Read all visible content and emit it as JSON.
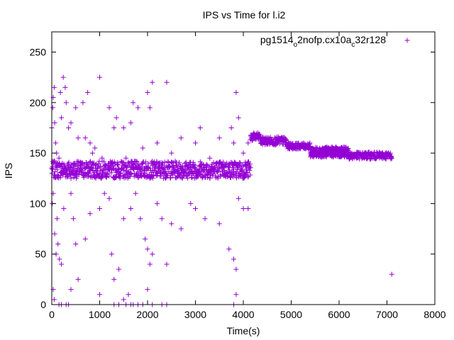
{
  "chart_data": {
    "type": "scatter",
    "title": "IPS vs Time for l.i2",
    "xlabel": "Time(s)",
    "ylabel": "IPS",
    "xlim": [
      0,
      8000
    ],
    "ylim": [
      0,
      270
    ],
    "xticks": [
      0,
      1000,
      2000,
      3000,
      4000,
      5000,
      6000,
      7000,
      8000
    ],
    "yticks": [
      0,
      50,
      100,
      150,
      200,
      250
    ],
    "grid": false,
    "legend_position": "top-right",
    "series": [
      {
        "name": "pg1514_o2nofp.cx10a_c32r128",
        "name_parts": {
          "base1": "pg1514",
          "sub1": "o",
          "base2": "2nofp.cx10a",
          "sub2": "c",
          "base3": "32r128"
        },
        "color": "#9400d3",
        "marker": "+",
        "bands": [
          {
            "x": [
              0,
              4150
            ],
            "y": [
              125,
              142
            ]
          },
          {
            "x": [
              4150,
              4350
            ],
            "y": [
              162,
              170
            ]
          },
          {
            "x": [
              4350,
              4900
            ],
            "y": [
              158,
              166
            ]
          },
          {
            "x": [
              4900,
              5400
            ],
            "y": [
              154,
              160
            ]
          },
          {
            "x": [
              5400,
              6200
            ],
            "y": [
              150,
              156
            ]
          },
          {
            "x": [
              5400,
              6200
            ],
            "y": [
              146,
              151
            ]
          },
          {
            "x": [
              6200,
              7100
            ],
            "y": [
              144,
              151
            ]
          }
        ],
        "points": [
          [
            0,
            175
          ],
          [
            20,
            195
          ],
          [
            30,
            205
          ],
          [
            50,
            215
          ],
          [
            60,
            180
          ],
          [
            80,
            160
          ],
          [
            100,
            150
          ],
          [
            150,
            145
          ],
          [
            180,
            210
          ],
          [
            200,
            185
          ],
          [
            240,
            225
          ],
          [
            280,
            215
          ],
          [
            300,
            200
          ],
          [
            350,
            175
          ],
          [
            400,
            180
          ],
          [
            500,
            195
          ],
          [
            550,
            165
          ],
          [
            650,
            200
          ],
          [
            700,
            165
          ],
          [
            750,
            210
          ],
          [
            800,
            160
          ],
          [
            850,
            150
          ],
          [
            900,
            155
          ],
          [
            1000,
            225
          ],
          [
            1050,
            145
          ],
          [
            1200,
            195
          ],
          [
            1300,
            175
          ],
          [
            1350,
            185
          ],
          [
            1500,
            175
          ],
          [
            1550,
            145
          ],
          [
            1650,
            180
          ],
          [
            1700,
            200
          ],
          [
            1800,
            195
          ],
          [
            1900,
            155
          ],
          [
            2000,
            210
          ],
          [
            2050,
            195
          ],
          [
            2100,
            220
          ],
          [
            2200,
            160
          ],
          [
            2400,
            220
          ],
          [
            2500,
            150
          ],
          [
            2700,
            165
          ],
          [
            3000,
            160
          ],
          [
            3100,
            175
          ],
          [
            3300,
            145
          ],
          [
            3500,
            165
          ],
          [
            3750,
            175
          ],
          [
            3800,
            160
          ],
          [
            3850,
            210
          ],
          [
            3900,
            185
          ],
          [
            4000,
            150
          ],
          [
            4100,
            160
          ],
          [
            10,
            100
          ],
          [
            30,
            110
          ],
          [
            60,
            70
          ],
          [
            90,
            50
          ],
          [
            110,
            85
          ],
          [
            130,
            60
          ],
          [
            160,
            45
          ],
          [
            200,
            40
          ],
          [
            250,
            95
          ],
          [
            400,
            110
          ],
          [
            450,
            85
          ],
          [
            500,
            60
          ],
          [
            700,
            65
          ],
          [
            800,
            90
          ],
          [
            1000,
            95
          ],
          [
            1100,
            110
          ],
          [
            1200,
            105
          ],
          [
            1250,
            50
          ],
          [
            1300,
            25
          ],
          [
            1400,
            35
          ],
          [
            1500,
            85
          ],
          [
            1650,
            95
          ],
          [
            1750,
            110
          ],
          [
            1850,
            85
          ],
          [
            1950,
            65
          ],
          [
            2000,
            55
          ],
          [
            2100,
            50
          ],
          [
            2050,
            40
          ],
          [
            2200,
            100
          ],
          [
            2300,
            85
          ],
          [
            2400,
            40
          ],
          [
            2500,
            80
          ],
          [
            2700,
            75
          ],
          [
            2900,
            100
          ],
          [
            3000,
            95
          ],
          [
            3200,
            85
          ],
          [
            3500,
            80
          ],
          [
            3700,
            55
          ],
          [
            3800,
            45
          ],
          [
            3850,
            35
          ],
          [
            3900,
            105
          ],
          [
            4000,
            95
          ],
          [
            4100,
            95
          ],
          [
            30,
            15
          ],
          [
            50,
            5
          ],
          [
            150,
            0
          ],
          [
            200,
            0
          ],
          [
            300,
            0
          ],
          [
            350,
            0
          ],
          [
            400,
            15
          ],
          [
            550,
            25
          ],
          [
            1000,
            10
          ],
          [
            1300,
            0
          ],
          [
            1400,
            0
          ],
          [
            1500,
            5
          ],
          [
            1550,
            0
          ],
          [
            1600,
            10
          ],
          [
            1650,
            0
          ],
          [
            1700,
            0
          ],
          [
            1800,
            0
          ],
          [
            1900,
            0
          ],
          [
            2000,
            15
          ],
          [
            2100,
            0
          ],
          [
            2300,
            0
          ],
          [
            2400,
            0
          ],
          [
            3800,
            0
          ],
          [
            3850,
            10
          ],
          [
            7100,
            30
          ]
        ]
      }
    ]
  }
}
